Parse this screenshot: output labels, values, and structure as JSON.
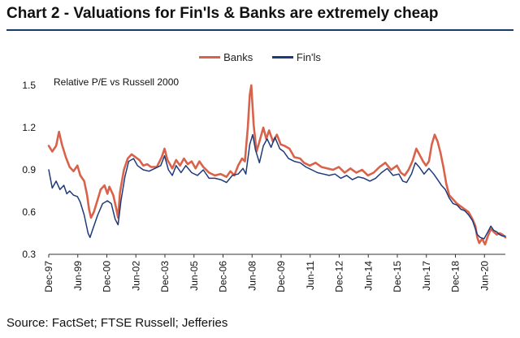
{
  "title": "Chart 2 - Valuations for Fin'ls & Banks are extremely cheap",
  "source": "Source: FactSet; FTSE Russell; Jefferies",
  "chart_data": {
    "type": "line",
    "annotation": "Relative P/E vs Russell 2000",
    "x_range": [
      1997.92,
      2021.5
    ],
    "ylim": [
      0.3,
      1.5
    ],
    "y_ticks": [
      0.3,
      0.6,
      0.9,
      1.2,
      1.5
    ],
    "y_tick_labels": [
      "0.3",
      "0.6",
      "0.9",
      "1.2",
      "1.5"
    ],
    "x_ticks": [
      1997.92,
      1999.42,
      2000.92,
      2002.42,
      2003.92,
      2005.42,
      2006.92,
      2008.42,
      2009.92,
      2011.42,
      2012.92,
      2014.42,
      2015.92,
      2017.42,
      2018.92,
      2020.42
    ],
    "x_tick_labels": [
      "Dec-97",
      "Jun-99",
      "Dec-00",
      "Jun-02",
      "Dec-03",
      "Jun-05",
      "Dec-06",
      "Jun-08",
      "Dec-09",
      "Jun-11",
      "Dec-12",
      "Jun-14",
      "Dec-15",
      "Jun-17",
      "Dec-18",
      "Jun-20"
    ],
    "series": [
      {
        "name": "Banks",
        "color": "#d9634a",
        "points": [
          [
            1997.92,
            1.07
          ],
          [
            1998.1,
            1.03
          ],
          [
            1998.3,
            1.07
          ],
          [
            1998.45,
            1.17
          ],
          [
            1998.6,
            1.08
          ],
          [
            1998.8,
            0.99
          ],
          [
            1999.0,
            0.92
          ],
          [
            1999.2,
            0.89
          ],
          [
            1999.4,
            0.93
          ],
          [
            1999.55,
            0.86
          ],
          [
            1999.75,
            0.82
          ],
          [
            1999.9,
            0.72
          ],
          [
            2000.0,
            0.62
          ],
          [
            2000.1,
            0.56
          ],
          [
            2000.25,
            0.6
          ],
          [
            2000.45,
            0.69
          ],
          [
            2000.6,
            0.76
          ],
          [
            2000.8,
            0.79
          ],
          [
            2000.95,
            0.73
          ],
          [
            2001.05,
            0.78
          ],
          [
            2001.25,
            0.72
          ],
          [
            2001.4,
            0.63
          ],
          [
            2001.5,
            0.56
          ],
          [
            2001.6,
            0.74
          ],
          [
            2001.8,
            0.9
          ],
          [
            2002.0,
            0.98
          ],
          [
            2002.2,
            1.01
          ],
          [
            2002.4,
            0.99
          ],
          [
            2002.6,
            0.97
          ],
          [
            2002.8,
            0.93
          ],
          [
            2003.0,
            0.94
          ],
          [
            2003.2,
            0.92
          ],
          [
            2003.5,
            0.92
          ],
          [
            2003.75,
            0.99
          ],
          [
            2003.9,
            1.05
          ],
          [
            2004.05,
            0.97
          ],
          [
            2004.3,
            0.91
          ],
          [
            2004.5,
            0.97
          ],
          [
            2004.7,
            0.93
          ],
          [
            2004.9,
            0.98
          ],
          [
            2005.1,
            0.94
          ],
          [
            2005.3,
            0.96
          ],
          [
            2005.5,
            0.91
          ],
          [
            2005.7,
            0.96
          ],
          [
            2005.9,
            0.92
          ],
          [
            2006.2,
            0.88
          ],
          [
            2006.5,
            0.86
          ],
          [
            2006.8,
            0.87
          ],
          [
            2007.1,
            0.85
          ],
          [
            2007.3,
            0.89
          ],
          [
            2007.5,
            0.86
          ],
          [
            2007.7,
            0.93
          ],
          [
            2007.9,
            0.98
          ],
          [
            2008.05,
            0.96
          ],
          [
            2008.2,
            1.2
          ],
          [
            2008.3,
            1.43
          ],
          [
            2008.38,
            1.5
          ],
          [
            2008.5,
            1.22
          ],
          [
            2008.65,
            1.03
          ],
          [
            2008.8,
            1.1
          ],
          [
            2009.0,
            1.2
          ],
          [
            2009.15,
            1.12
          ],
          [
            2009.3,
            1.18
          ],
          [
            2009.5,
            1.1
          ],
          [
            2009.7,
            1.15
          ],
          [
            2009.9,
            1.08
          ],
          [
            2010.1,
            1.07
          ],
          [
            2010.35,
            1.05
          ],
          [
            2010.6,
            0.99
          ],
          [
            2010.9,
            0.98
          ],
          [
            2011.1,
            0.95
          ],
          [
            2011.4,
            0.93
          ],
          [
            2011.7,
            0.95
          ],
          [
            2012.0,
            0.92
          ],
          [
            2012.3,
            0.91
          ],
          [
            2012.6,
            0.9
          ],
          [
            2012.9,
            0.92
          ],
          [
            2013.2,
            0.88
          ],
          [
            2013.5,
            0.91
          ],
          [
            2013.8,
            0.88
          ],
          [
            2014.1,
            0.9
          ],
          [
            2014.4,
            0.86
          ],
          [
            2014.7,
            0.88
          ],
          [
            2015.0,
            0.92
          ],
          [
            2015.3,
            0.95
          ],
          [
            2015.6,
            0.9
          ],
          [
            2015.9,
            0.93
          ],
          [
            2016.1,
            0.88
          ],
          [
            2016.3,
            0.86
          ],
          [
            2016.5,
            0.9
          ],
          [
            2016.7,
            0.96
          ],
          [
            2016.9,
            1.05
          ],
          [
            2017.1,
            1.0
          ],
          [
            2017.25,
            0.96
          ],
          [
            2017.4,
            0.93
          ],
          [
            2017.55,
            0.96
          ],
          [
            2017.7,
            1.08
          ],
          [
            2017.85,
            1.15
          ],
          [
            2018.0,
            1.1
          ],
          [
            2018.15,
            1.02
          ],
          [
            2018.3,
            0.92
          ],
          [
            2018.45,
            0.8
          ],
          [
            2018.6,
            0.72
          ],
          [
            2018.8,
            0.69
          ],
          [
            2019.0,
            0.66
          ],
          [
            2019.2,
            0.64
          ],
          [
            2019.4,
            0.62
          ],
          [
            2019.6,
            0.6
          ],
          [
            2019.8,
            0.55
          ],
          [
            2019.95,
            0.5
          ],
          [
            2020.05,
            0.42
          ],
          [
            2020.15,
            0.38
          ],
          [
            2020.3,
            0.41
          ],
          [
            2020.45,
            0.37
          ],
          [
            2020.6,
            0.43
          ],
          [
            2020.75,
            0.48
          ],
          [
            2020.9,
            0.46
          ],
          [
            2021.05,
            0.44
          ],
          [
            2021.2,
            0.45
          ],
          [
            2021.35,
            0.44
          ],
          [
            2021.5,
            0.42
          ]
        ]
      },
      {
        "name": "Fin'ls",
        "color": "#1f3a7a",
        "points": [
          [
            1997.92,
            0.9
          ],
          [
            1998.1,
            0.77
          ],
          [
            1998.3,
            0.82
          ],
          [
            1998.5,
            0.76
          ],
          [
            1998.7,
            0.79
          ],
          [
            1998.85,
            0.73
          ],
          [
            1999.0,
            0.75
          ],
          [
            1999.2,
            0.72
          ],
          [
            1999.4,
            0.71
          ],
          [
            1999.55,
            0.67
          ],
          [
            1999.75,
            0.58
          ],
          [
            1999.95,
            0.45
          ],
          [
            2000.05,
            0.42
          ],
          [
            2000.2,
            0.48
          ],
          [
            2000.45,
            0.58
          ],
          [
            2000.7,
            0.66
          ],
          [
            2000.95,
            0.68
          ],
          [
            2001.15,
            0.66
          ],
          [
            2001.35,
            0.55
          ],
          [
            2001.5,
            0.51
          ],
          [
            2001.65,
            0.68
          ],
          [
            2001.85,
            0.85
          ],
          [
            2002.05,
            0.96
          ],
          [
            2002.3,
            0.98
          ],
          [
            2002.5,
            0.93
          ],
          [
            2002.8,
            0.9
          ],
          [
            2003.1,
            0.89
          ],
          [
            2003.4,
            0.91
          ],
          [
            2003.7,
            0.93
          ],
          [
            2003.9,
            1.0
          ],
          [
            2004.1,
            0.9
          ],
          [
            2004.3,
            0.86
          ],
          [
            2004.5,
            0.93
          ],
          [
            2004.75,
            0.88
          ],
          [
            2005.0,
            0.93
          ],
          [
            2005.3,
            0.88
          ],
          [
            2005.6,
            0.86
          ],
          [
            2005.9,
            0.9
          ],
          [
            2006.2,
            0.84
          ],
          [
            2006.5,
            0.84
          ],
          [
            2006.8,
            0.83
          ],
          [
            2007.1,
            0.81
          ],
          [
            2007.4,
            0.86
          ],
          [
            2007.7,
            0.87
          ],
          [
            2007.95,
            0.91
          ],
          [
            2008.1,
            0.87
          ],
          [
            2008.3,
            1.08
          ],
          [
            2008.45,
            1.15
          ],
          [
            2008.6,
            1.04
          ],
          [
            2008.8,
            0.95
          ],
          [
            2009.0,
            1.07
          ],
          [
            2009.2,
            1.12
          ],
          [
            2009.4,
            1.06
          ],
          [
            2009.6,
            1.13
          ],
          [
            2009.85,
            1.05
          ],
          [
            2010.05,
            1.03
          ],
          [
            2010.3,
            0.98
          ],
          [
            2010.6,
            0.96
          ],
          [
            2010.9,
            0.95
          ],
          [
            2011.2,
            0.92
          ],
          [
            2011.5,
            0.9
          ],
          [
            2011.8,
            0.88
          ],
          [
            2012.1,
            0.87
          ],
          [
            2012.4,
            0.86
          ],
          [
            2012.7,
            0.87
          ],
          [
            2013.0,
            0.84
          ],
          [
            2013.3,
            0.86
          ],
          [
            2013.6,
            0.83
          ],
          [
            2013.9,
            0.85
          ],
          [
            2014.2,
            0.84
          ],
          [
            2014.5,
            0.82
          ],
          [
            2014.8,
            0.84
          ],
          [
            2015.1,
            0.88
          ],
          [
            2015.4,
            0.91
          ],
          [
            2015.7,
            0.86
          ],
          [
            2016.0,
            0.87
          ],
          [
            2016.2,
            0.82
          ],
          [
            2016.4,
            0.81
          ],
          [
            2016.65,
            0.87
          ],
          [
            2016.85,
            0.95
          ],
          [
            2017.05,
            0.92
          ],
          [
            2017.3,
            0.87
          ],
          [
            2017.55,
            0.91
          ],
          [
            2017.8,
            0.87
          ],
          [
            2018.0,
            0.83
          ],
          [
            2018.2,
            0.79
          ],
          [
            2018.4,
            0.76
          ],
          [
            2018.6,
            0.7
          ],
          [
            2018.8,
            0.66
          ],
          [
            2019.0,
            0.65
          ],
          [
            2019.2,
            0.62
          ],
          [
            2019.4,
            0.61
          ],
          [
            2019.6,
            0.58
          ],
          [
            2019.8,
            0.54
          ],
          [
            2019.95,
            0.48
          ],
          [
            2020.05,
            0.44
          ],
          [
            2020.2,
            0.42
          ],
          [
            2020.4,
            0.41
          ],
          [
            2020.6,
            0.46
          ],
          [
            2020.75,
            0.5
          ],
          [
            2020.9,
            0.47
          ],
          [
            2021.05,
            0.46
          ],
          [
            2021.2,
            0.44
          ],
          [
            2021.35,
            0.43
          ],
          [
            2021.5,
            0.43
          ]
        ]
      }
    ]
  }
}
